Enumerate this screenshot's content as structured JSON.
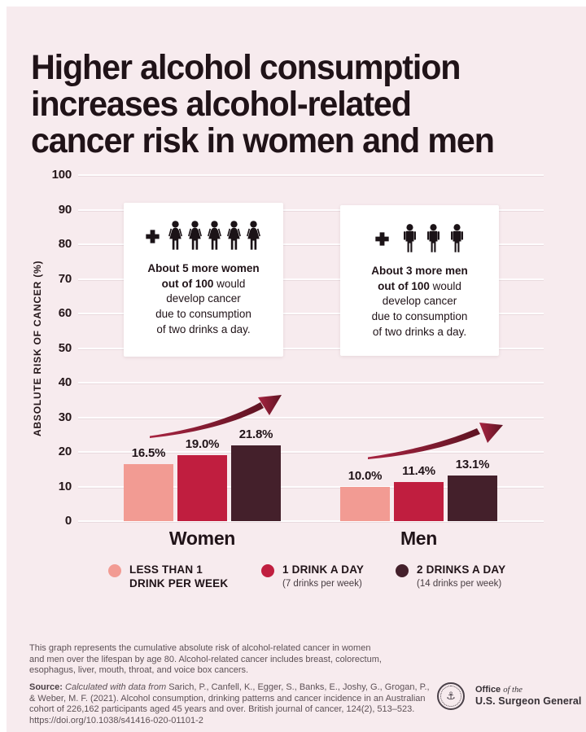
{
  "title": {
    "lines": [
      "Higher alcohol consumption",
      "increases alcohol-related",
      "cancer risk in women and men"
    ],
    "full": "Higher alcohol consumption increases alcohol-related cancer risk in women and men"
  },
  "chart_data": {
    "type": "bar",
    "title": "Higher alcohol consumption increases alcohol-related cancer risk in women and men",
    "xlabel": "",
    "ylabel": "ABSOLUTE RISK OF CANCER (%)",
    "ylim": [
      0,
      100
    ],
    "ytick_interval": 10,
    "grid": true,
    "legend_position": "bottom",
    "categories": [
      "Women",
      "Men"
    ],
    "series": [
      {
        "name": "LESS THAN 1 DRINK PER WEEK",
        "color": "#F29B93",
        "values": [
          16.5,
          10.0
        ]
      },
      {
        "name": "1 DRINK A DAY (7 drinks per week)",
        "color": "#C01E3F",
        "values": [
          19.0,
          11.4
        ]
      },
      {
        "name": "2 DRINKS A DAY (14 drinks per week)",
        "color": "#44202B",
        "values": [
          21.8,
          13.1
        ]
      }
    ],
    "data_labels": [
      [
        "16.5%",
        "19.0%",
        "21.8%"
      ],
      [
        "10.0%",
        "11.4%",
        "13.1%"
      ]
    ],
    "annotations": [
      "About 5 more women out of 100 would develop cancer due to consumption of two drinks a day.",
      "About 3 more men out of 100 would develop cancer due to consumption of two drinks a day."
    ]
  },
  "annotations": {
    "women": {
      "icon_count": 5,
      "bold": "About 5 more women\nout of 100",
      "rest": "would\ndevelop cancer\ndue to consumption\nof two drinks a day."
    },
    "men": {
      "icon_count": 3,
      "bold": "About 3 more men\nout of 100",
      "rest": "would\ndevelop cancer\ndue to consumption\nof two drinks a day."
    }
  },
  "legend": [
    {
      "label": "LESS THAN 1\nDRINK PER WEEK",
      "sub": "",
      "color": "#F29B93"
    },
    {
      "label": "1 DRINK A DAY",
      "sub": "(7 drinks per week)",
      "color": "#C01E3F"
    },
    {
      "label": "2 DRINKS A DAY",
      "sub": "(14 drinks per week)",
      "color": "#44202B"
    }
  ],
  "footer": {
    "note": "This graph represents the cumulative absolute risk of alcohol-related cancer in women and men over the lifespan by age 80. Alcohol-related cancer includes breast, colorectum, esophagus, liver, mouth, throat, and voice box cancers.",
    "source_label": "Source:",
    "source_italic": "Calculated with data from",
    "source_rest": "Sarich, P., Canfell, K., Egger, S., Banks, E., Joshy, G., Grogan, P., & Weber, M. F. (2021). Alcohol consumption, drinking patterns and cancer incidence in an Australian cohort of 226,162 participants aged 45 years and over. British journal of cancer, 124(2), 513–523. https://doi.org/10.1038/s41416-020-01101-2"
  },
  "logo": {
    "office": "Office",
    "of_the": "of the",
    "line2": "U.S. Surgeon General"
  },
  "colors": {
    "background": "#F7EBEE",
    "bar_pink": "#F29B93",
    "bar_red": "#C01E3F",
    "bar_dark": "#44202B",
    "arrow_light": "#A82441",
    "arrow_dark": "#5E1322",
    "text_dark": "#201318"
  }
}
